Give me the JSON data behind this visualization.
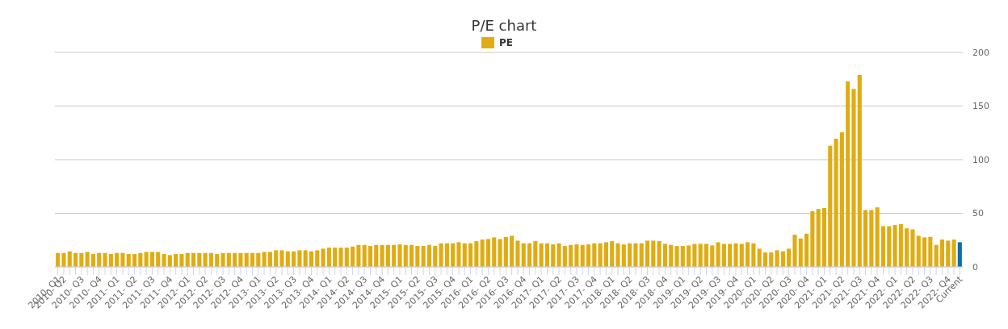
{
  "chart_data": {
    "type": "bar",
    "title": "P/E chart",
    "categories": [
      "2010- Q1",
      "2010- Q2",
      null,
      null,
      "2010- Q3",
      null,
      null,
      "2010- Q4",
      null,
      null,
      "2011- Q1",
      null,
      null,
      "2011- Q2",
      null,
      null,
      "2011- Q3",
      null,
      null,
      "2011- Q4",
      null,
      null,
      "2012- Q1",
      null,
      null,
      "2012- Q2",
      null,
      null,
      "2012- Q3",
      null,
      null,
      "2012- Q4",
      null,
      null,
      "2013- Q1",
      null,
      null,
      "2013- Q2",
      null,
      null,
      "2013- Q3",
      null,
      null,
      "2013- Q4",
      null,
      null,
      "2014- Q1",
      null,
      null,
      "2014- Q2",
      null,
      null,
      "2014- Q3",
      null,
      null,
      "2014- Q4",
      null,
      null,
      "2015- Q1",
      null,
      null,
      "2015- Q2",
      null,
      null,
      "2015- Q3",
      null,
      null,
      "2015- Q4",
      null,
      null,
      "2016- Q1",
      null,
      null,
      "2016- Q2",
      null,
      null,
      "2016- Q3",
      null,
      null,
      "2016- Q4",
      null,
      null,
      "2017- Q1",
      null,
      null,
      "2017- Q2",
      null,
      null,
      "2017- Q3",
      null,
      null,
      "2017- Q4",
      null,
      null,
      "2018- Q1",
      null,
      null,
      "2018- Q2",
      null,
      null,
      "2018- Q3",
      null,
      null,
      "2018- Q4",
      null,
      null,
      "2019- Q1",
      null,
      null,
      "2019- Q2",
      null,
      null,
      "2019- Q3",
      null,
      null,
      "2019- Q4",
      null,
      null,
      "2020- Q1",
      null,
      null,
      "2020- Q2",
      null,
      null,
      "2020- Q3",
      null,
      null,
      "2020- Q4",
      null,
      null,
      "2021- Q1",
      null,
      null,
      "2021- Q2",
      null,
      null,
      "2021- Q3",
      null,
      null,
      "2021- Q4",
      null,
      null,
      "2022- Q1",
      null,
      null,
      "2022- Q2",
      null,
      null,
      "2022- Q3",
      null,
      null,
      "2022- Q4",
      null,
      "Current"
    ],
    "series": [
      {
        "name": "PE",
        "color": "#e0ac12",
        "colors": [
          "#e0ac12",
          "#e0ac12",
          "#e0ac12",
          "#e0ac12",
          "#e0ac12",
          "#e0ac12",
          "#e0ac12",
          "#e0ac12",
          "#e0ac12",
          "#e0ac12",
          "#e0ac12",
          "#e0ac12",
          "#e0ac12",
          "#e0ac12",
          "#e0ac12",
          "#e0ac12",
          "#e0ac12",
          "#e0ac12",
          "#e0ac12",
          "#e0ac12",
          "#e0ac12",
          "#e0ac12",
          "#e0ac12",
          "#e0ac12",
          "#e0ac12",
          "#e0ac12",
          "#e0ac12",
          "#e0ac12",
          "#e0ac12",
          "#e0ac12",
          "#e0ac12",
          "#e0ac12",
          "#e0ac12",
          "#e0ac12",
          "#e0ac12",
          "#e0ac12",
          "#e0ac12",
          "#e0ac12",
          "#e0ac12",
          "#e0ac12",
          "#e0ac12",
          "#e0ac12",
          "#e0ac12",
          "#e0ac12",
          "#e0ac12",
          "#e0ac12",
          "#e0ac12",
          "#e0ac12",
          "#e0ac12",
          "#e0ac12",
          "#e0ac12",
          "#e0ac12",
          "#e0ac12",
          "#e0ac12",
          "#e0ac12",
          "#e0ac12",
          "#e0ac12",
          "#e0ac12",
          "#e0ac12",
          "#e0ac12",
          "#e0ac12",
          "#e0ac12",
          "#e0ac12",
          "#e0ac12",
          "#e0ac12",
          "#e0ac12",
          "#e0ac12",
          "#e0ac12",
          "#e0ac12",
          "#e0ac12",
          "#e0ac12",
          "#e0ac12",
          "#e0ac12",
          "#e0ac12",
          "#e0ac12",
          "#e0ac12",
          "#e0ac12",
          "#e0ac12",
          "#e0ac12",
          "#e0ac12",
          "#e0ac12",
          "#e0ac12",
          "#e0ac12",
          "#e0ac12",
          "#e0ac12",
          "#e0ac12",
          "#e0ac12",
          "#e0ac12",
          "#e0ac12",
          "#e0ac12",
          "#e0ac12",
          "#e0ac12",
          "#e0ac12",
          "#e0ac12",
          "#e0ac12",
          "#e0ac12",
          "#e0ac12",
          "#e0ac12",
          "#e0ac12",
          "#e0ac12",
          "#e0ac12",
          "#e0ac12",
          "#e0ac12",
          "#e0ac12",
          "#e0ac12",
          "#e0ac12",
          "#e0ac12",
          "#e0ac12",
          "#e0ac12",
          "#e0ac12",
          "#e0ac12",
          "#e0ac12",
          "#e0ac12",
          "#e0ac12",
          "#e0ac12",
          "#e0ac12",
          "#e0ac12",
          "#e0ac12",
          "#e0ac12",
          "#e0ac12",
          "#e0ac12",
          "#e0ac12",
          "#e0ac12",
          "#e0ac12",
          "#e0ac12",
          "#e0ac12",
          "#e0ac12",
          "#e0ac12",
          "#e0ac12",
          "#e0ac12",
          "#e0ac12",
          "#e0ac12",
          "#e0ac12",
          "#e0ac12",
          "#e0ac12",
          "#e0ac12",
          "#e0ac12",
          "#e0ac12",
          "#e0ac12",
          "#e0ac12",
          "#e0ac12",
          "#e0ac12",
          "#e0ac12",
          "#e0ac12",
          "#e0ac12",
          "#e0ac12",
          "#e0ac12",
          "#e0ac12",
          "#e0ac12",
          "#e0ac12",
          "#e0ac12",
          "#e0ac12",
          "#e0ac12",
          "#0f6fae"
        ],
        "values": [
          13,
          13,
          14.5,
          13,
          13,
          14,
          12,
          13,
          13,
          12,
          13,
          13,
          12,
          12,
          13,
          14,
          14,
          14,
          12,
          11,
          12,
          12,
          13,
          13,
          13,
          13,
          13,
          12,
          13,
          13,
          13,
          13,
          13,
          13,
          13,
          14,
          14,
          15.5,
          15.5,
          14.5,
          14.5,
          15.5,
          15.5,
          14.5,
          15.5,
          17,
          18,
          18,
          18,
          18,
          19,
          20.5,
          20.5,
          19.5,
          20.5,
          20.5,
          20.5,
          20.5,
          21,
          20.5,
          20.5,
          19.5,
          19.5,
          20.5,
          19.5,
          22,
          22,
          22,
          23,
          22,
          22,
          24,
          25.5,
          26,
          27.5,
          26,
          28,
          29,
          24.5,
          22,
          22,
          24,
          22,
          22,
          21,
          22,
          19.5,
          20.5,
          21,
          20.5,
          21,
          22,
          22,
          23,
          24,
          22,
          21,
          22,
          22,
          22,
          24.5,
          24.5,
          24,
          21.5,
          20.5,
          19.5,
          19.5,
          20,
          21.5,
          21.5,
          21.5,
          20,
          23,
          21.5,
          21.5,
          22,
          21.5,
          23,
          22,
          17,
          13.5,
          13.5,
          15.5,
          14.5,
          17,
          30,
          26.5,
          31,
          52,
          54,
          55,
          113,
          119.5,
          125.5,
          173,
          166,
          179,
          53,
          53,
          55.5,
          38,
          38,
          39,
          40,
          36,
          35,
          29,
          27.5,
          28,
          20.5,
          25.5,
          24.5,
          25.5,
          23
        ]
      }
    ],
    "ylim": [
      0,
      200
    ],
    "yticks": [
      0,
      50,
      100,
      150,
      200
    ],
    "grid": "y",
    "legend": "top"
  }
}
